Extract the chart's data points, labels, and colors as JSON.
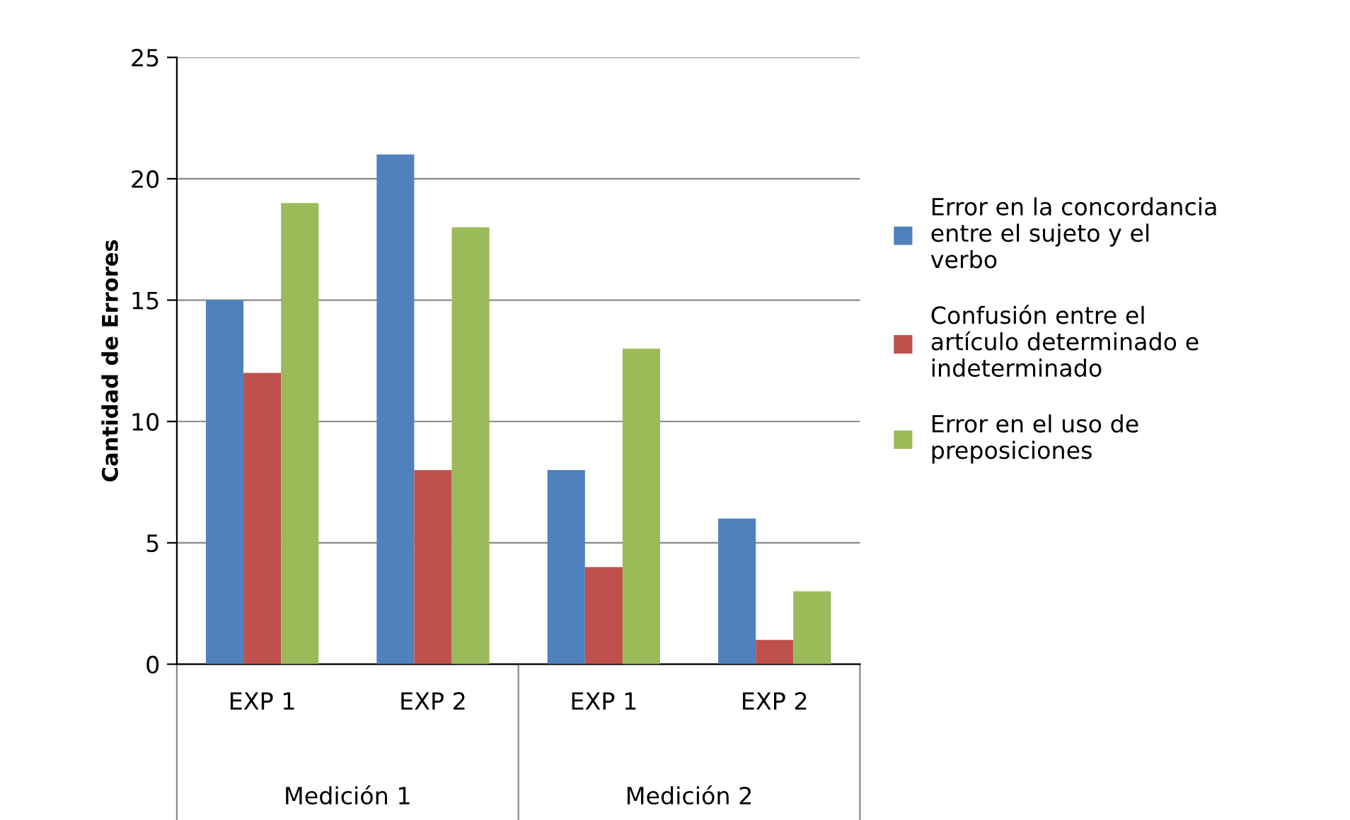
{
  "chart_data": {
    "type": "bar",
    "ylabel": "Cantidad de Errores",
    "categories": [
      "EXP 1",
      "EXP 2",
      "EXP 1",
      "EXP 2"
    ],
    "series": [
      {
        "name": "Error en la concordancia entre el sujeto y el verbo",
        "color": "#4f81bd",
        "values": [
          15,
          21,
          8,
          6
        ]
      },
      {
        "name": "Confusión entre el artículo determinado e indeterminado",
        "color": "#c0504d",
        "values": [
          12,
          8,
          4,
          1
        ]
      },
      {
        "name": "Error en el uso de preposiciones",
        "color": "#9bbb59",
        "values": [
          19,
          18,
          13,
          3
        ]
      }
    ],
    "annotations": [
      "Medición 1",
      "Medición 2"
    ],
    "ylim": [
      0,
      25
    ],
    "yticks": [
      0,
      5,
      10,
      15,
      20,
      25
    ],
    "grid": "y",
    "legend": "right"
  }
}
